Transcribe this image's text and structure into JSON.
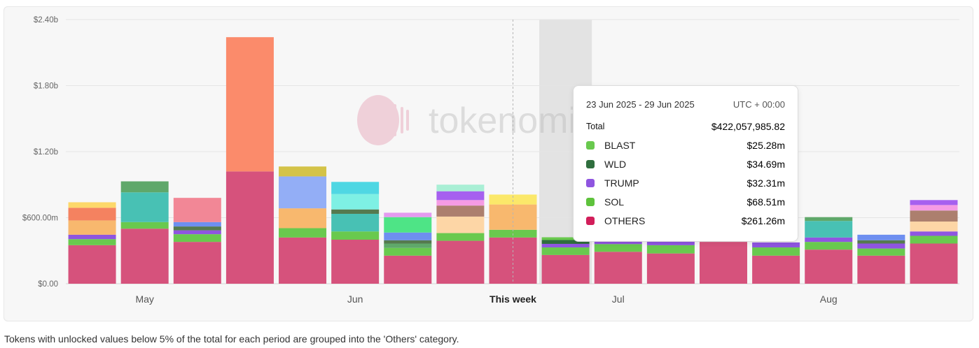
{
  "chart_data": {
    "type": "bar",
    "stacked": true,
    "title": "",
    "xlabel": "",
    "ylabel": "",
    "ylim": [
      0,
      2400000000
    ],
    "y_ticks": [
      "$0.00",
      "$600.00m",
      "$1.20b",
      "$1.80b",
      "$2.40b"
    ],
    "y_tick_values": [
      0,
      600000000,
      1200000000,
      1800000000,
      2400000000
    ],
    "x_labels": [
      {
        "text": "May",
        "index": 1.5,
        "bold": false
      },
      {
        "text": "Jun",
        "index": 5.5,
        "bold": false
      },
      {
        "text": "This week",
        "index": 8.5,
        "bold": true
      },
      {
        "text": "Jul",
        "index": 10.5,
        "bold": false
      },
      {
        "text": "Aug",
        "index": 14.5,
        "bold": false
      }
    ],
    "current_week_index": 8.5,
    "hovered_index": 9,
    "watermark": "tokenomist",
    "bars": [
      [
        [
          350,
          "#d6527c"
        ],
        [
          55,
          "#69c94e"
        ],
        [
          40,
          "#8f55e0"
        ],
        [
          130,
          "#f8b86e"
        ],
        [
          115,
          "#f48260"
        ],
        [
          50,
          "#fdd86a"
        ]
      ],
      [
        [
          500,
          "#d6527c"
        ],
        [
          60,
          "#69c94e"
        ],
        [
          270,
          "#48c1b4"
        ],
        [
          100,
          "#5fa86a"
        ]
      ],
      [
        [
          380,
          "#d6527c"
        ],
        [
          70,
          "#69c94e"
        ],
        [
          35,
          "#8f55e0"
        ],
        [
          35,
          "#557a4f"
        ],
        [
          40,
          "#6e8ff0"
        ],
        [
          220,
          "#f28796"
        ]
      ],
      [
        [
          1020,
          "#d6527c"
        ],
        [
          1220,
          "#fb8b6b"
        ]
      ],
      [
        [
          420,
          "#d6527c"
        ],
        [
          85,
          "#69c94e"
        ],
        [
          180,
          "#f8b86e"
        ],
        [
          290,
          "#93aef6"
        ],
        [
          90,
          "#d4c348"
        ]
      ],
      [
        [
          400,
          "#d6527c"
        ],
        [
          75,
          "#69c94e"
        ],
        [
          160,
          "#48c1b4"
        ],
        [
          40,
          "#557a4f"
        ],
        [
          140,
          "#7ef0e4"
        ],
        [
          110,
          "#4fd7e3"
        ]
      ],
      [
        [
          255,
          "#d6527c"
        ],
        [
          70,
          "#69c94e"
        ],
        [
          40,
          "#5fa86a"
        ],
        [
          30,
          "#557a4f"
        ],
        [
          70,
          "#6e8ff0"
        ],
        [
          140,
          "#4ee486"
        ],
        [
          40,
          "#e59af0"
        ]
      ],
      [
        [
          390,
          "#d6527c"
        ],
        [
          70,
          "#69c94e"
        ],
        [
          150,
          "#fdd6a6"
        ],
        [
          100,
          "#ac7f6e"
        ],
        [
          50,
          "#f59be4"
        ],
        [
          80,
          "#a660ef"
        ],
        [
          60,
          "#a9efd5"
        ]
      ],
      [
        [
          420,
          "#d6527c"
        ],
        [
          70,
          "#69c94e"
        ],
        [
          230,
          "#f8b86e"
        ],
        [
          90,
          "#fbe86a"
        ]
      ],
      [
        [
          261,
          "#d6527c"
        ],
        [
          69,
          "#69c94e"
        ],
        [
          32,
          "#8f55e0"
        ],
        [
          35,
          "#2f6e3e"
        ],
        [
          25,
          "#69c94e"
        ]
      ],
      [
        [
          290,
          "#d6527c"
        ],
        [
          70,
          "#69c94e"
        ],
        [
          40,
          "#8f55e0"
        ]
      ],
      [
        [
          275,
          "#d6527c"
        ],
        [
          75,
          "#69c94e"
        ],
        [
          40,
          "#8f55e0"
        ]
      ],
      [
        [
          380,
          "#d6527c"
        ]
      ],
      [
        [
          255,
          "#d6527c"
        ],
        [
          75,
          "#69c94e"
        ],
        [
          45,
          "#8f55e0"
        ]
      ],
      [
        [
          310,
          "#d6527c"
        ],
        [
          70,
          "#69c94e"
        ],
        [
          40,
          "#8f55e0"
        ],
        [
          150,
          "#48c1b4"
        ],
        [
          35,
          "#5fa86a"
        ]
      ],
      [
        [
          255,
          "#d6527c"
        ],
        [
          65,
          "#69c94e"
        ],
        [
          45,
          "#8f55e0"
        ],
        [
          30,
          "#557a4f"
        ],
        [
          50,
          "#6e8ff0"
        ]
      ],
      [
        [
          365,
          "#d6527c"
        ],
        [
          70,
          "#69c94e"
        ],
        [
          40,
          "#8f55e0"
        ],
        [
          90,
          "#fdd6a6"
        ],
        [
          100,
          "#ac7f6e"
        ],
        [
          50,
          "#f59be4"
        ],
        [
          45,
          "#a660ef"
        ]
      ]
    ]
  },
  "tooltip": {
    "date_range": "23 Jun 2025 - 29 Jun 2025",
    "timezone": "UTC + 00:00",
    "total_label": "Total",
    "total_value": "$422,057,985.82",
    "items": [
      {
        "label": "BLAST",
        "value": "$25.28m",
        "color": "#69c94e"
      },
      {
        "label": "WLD",
        "value": "$34.69m",
        "color": "#2f6e3e"
      },
      {
        "label": "TRUMP",
        "value": "$32.31m",
        "color": "#8f55e0"
      },
      {
        "label": "SOL",
        "value": "$68.51m",
        "color": "#5ec23c"
      },
      {
        "label": "OTHERS",
        "value": "$261.26m",
        "color": "#d21e5a"
      }
    ]
  },
  "footnote": "Tokens with unlocked values below 5% of the total for each period are grouped into the 'Others' category."
}
